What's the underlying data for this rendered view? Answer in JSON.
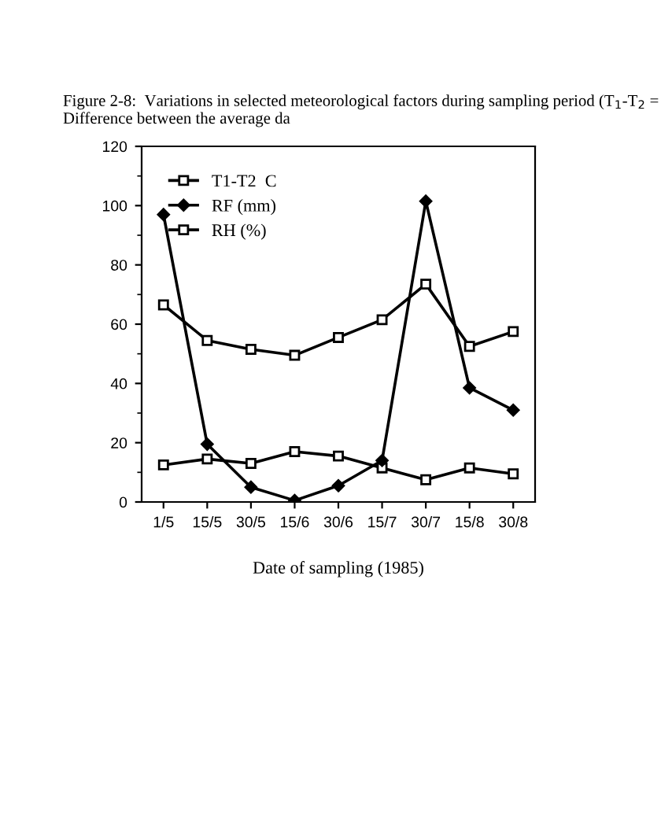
{
  "chart_data": {
    "type": "line",
    "xlabel": "Date of sampling (1985)",
    "categories": [
      "1/5",
      "15/5",
      "30/5",
      "15/6",
      "30/6",
      "15/7",
      "30/7",
      "15/8",
      "30/8"
    ],
    "series": [
      {
        "name": "T1-T2  C",
        "color": "#000000",
        "marker": "square",
        "values": [
          12.5,
          14.5,
          13,
          17,
          15.5,
          11.5,
          7.5,
          11.5,
          9.5
        ]
      },
      {
        "name": "RF (mm)",
        "color": "#000000",
        "marker": "diamond",
        "values": [
          97,
          19.5,
          5,
          0.5,
          5.5,
          14,
          101.5,
          38.5,
          31
        ]
      },
      {
        "name": "RH (%)",
        "color": "#000000",
        "marker": "square",
        "values": [
          66.5,
          54.5,
          51.5,
          49.5,
          55.5,
          61.5,
          73.5,
          52.5,
          57.5
        ]
      }
    ],
    "ylim": [
      0,
      120
    ],
    "yticks": [
      0,
      20,
      40,
      60,
      80,
      100,
      120
    ],
    "grid": false,
    "legend": "top left",
    "line_style": "solid",
    "annotations": [
      "Figure 2-8:  Variations in selected meteorological factors during sampling period (T$_{1}$-T$_{2}$ = Difference between the average da"
    ]
  }
}
